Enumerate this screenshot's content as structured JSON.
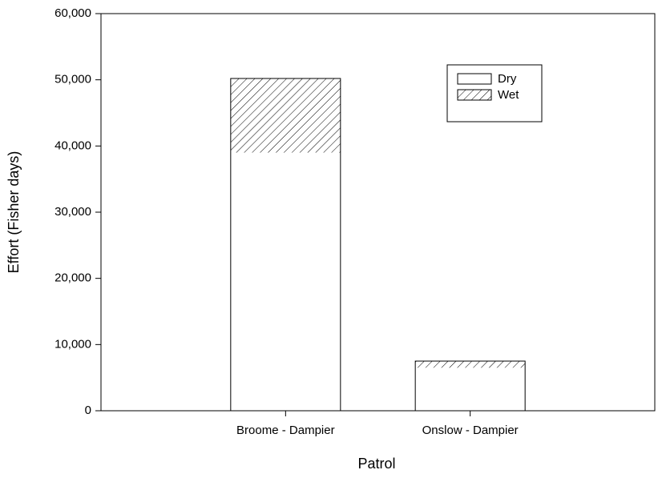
{
  "chart_data": {
    "type": "stacked_bar",
    "xlabel": "Patrol",
    "ylabel": "Effort (Fisher days)",
    "categories": [
      "Broome - Dampier",
      "Onslow - Dampier"
    ],
    "series": [
      {
        "name": "Dry",
        "color": "#ffffff",
        "values": [
          39000,
          6500
        ]
      },
      {
        "name": "Wet",
        "color": "#000000",
        "hatch": true,
        "values": [
          11200,
          1000
        ]
      }
    ],
    "ylim": [
      0,
      60000
    ],
    "yticks": [
      0,
      {
        "value": 10000,
        "label": "10,000"
      },
      {
        "value": 20000,
        "label": "20,000"
      },
      {
        "value": 30000,
        "label": "30,000"
      },
      {
        "value": 40000,
        "label": "40,000"
      },
      {
        "value": 50000,
        "label": "50,000"
      },
      {
        "value": 60000,
        "label": "60,000"
      }
    ],
    "legend": "upper right"
  }
}
